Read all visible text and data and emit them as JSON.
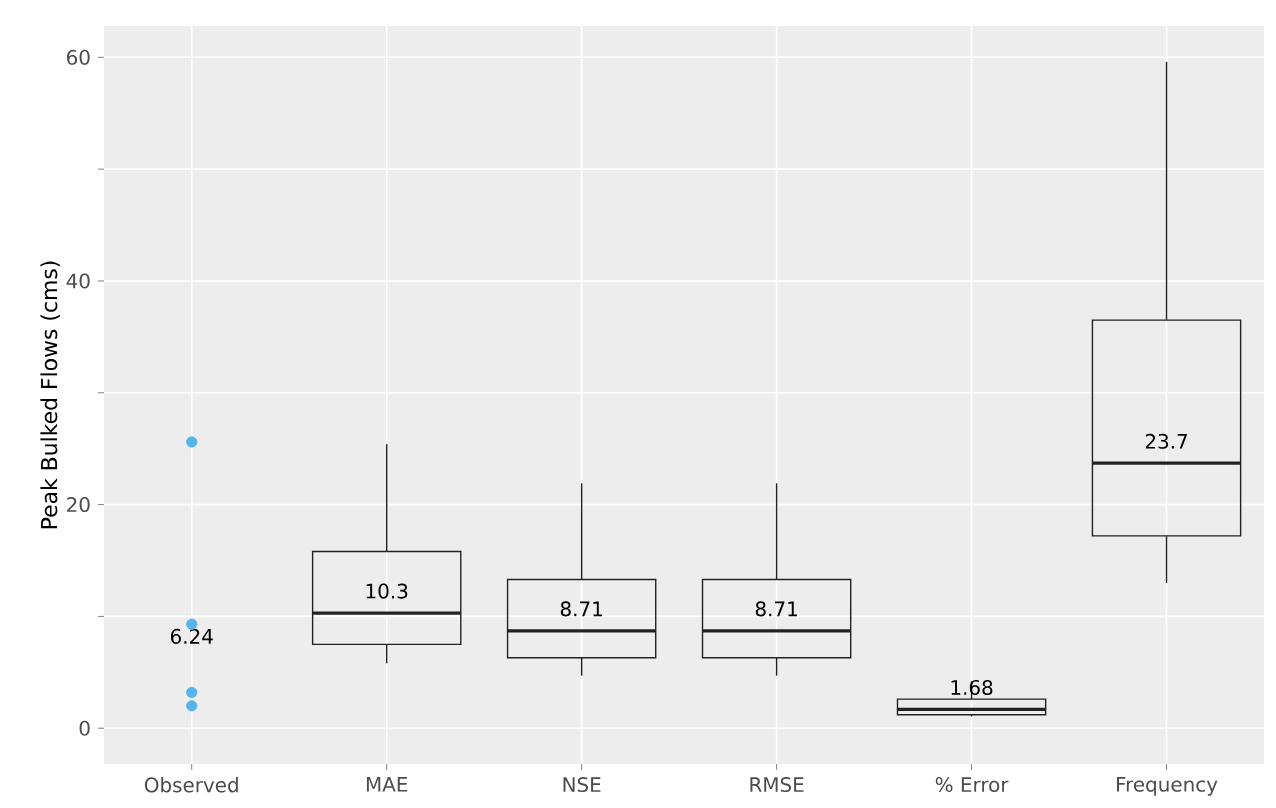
{
  "chart_data": {
    "type": "box",
    "ylabel": "Peak Bulked Flows (cms)",
    "categories": [
      "Observed",
      "MAE",
      "NSE",
      "RMSE",
      "% Error",
      "Frequency"
    ],
    "ylim": [
      -3.2,
      62.8
    ],
    "yticks": [
      0,
      {
        "value": 10,
        "label": null
      },
      20,
      {
        "value": 30,
        "label": null
      },
      40,
      {
        "value": 50,
        "label": null
      },
      60
    ],
    "grid": true,
    "series": [
      {
        "type": "scatter",
        "marker": "circle",
        "color": "#56b4e9",
        "x": [
          "Observed",
          "Observed",
          "Observed",
          "Observed"
        ],
        "values": [
          25.6,
          9.3,
          3.2,
          2.0
        ]
      },
      {
        "type": "box",
        "color": "#222222",
        "boxes": [
          null,
          {
            "low": 5.8,
            "q1": 7.5,
            "median": 10.3,
            "q3": 15.8,
            "high": 25.4
          },
          {
            "low": 4.7,
            "q1": 6.3,
            "median": 8.71,
            "q3": 13.3,
            "high": 21.9
          },
          {
            "low": 4.7,
            "q1": 6.3,
            "median": 8.71,
            "q3": 13.3,
            "high": 21.9
          },
          {
            "low": 1.05,
            "q1": 1.2,
            "median": 1.68,
            "q3": 2.6,
            "high": 4.2
          },
          {
            "low": 13.0,
            "q1": 17.2,
            "median": 23.7,
            "q3": 36.5,
            "high": 59.6
          }
        ]
      }
    ],
    "annotations": [
      "6.24",
      "10.3",
      "8.71",
      "8.71",
      "1.68",
      "23.7"
    ]
  }
}
